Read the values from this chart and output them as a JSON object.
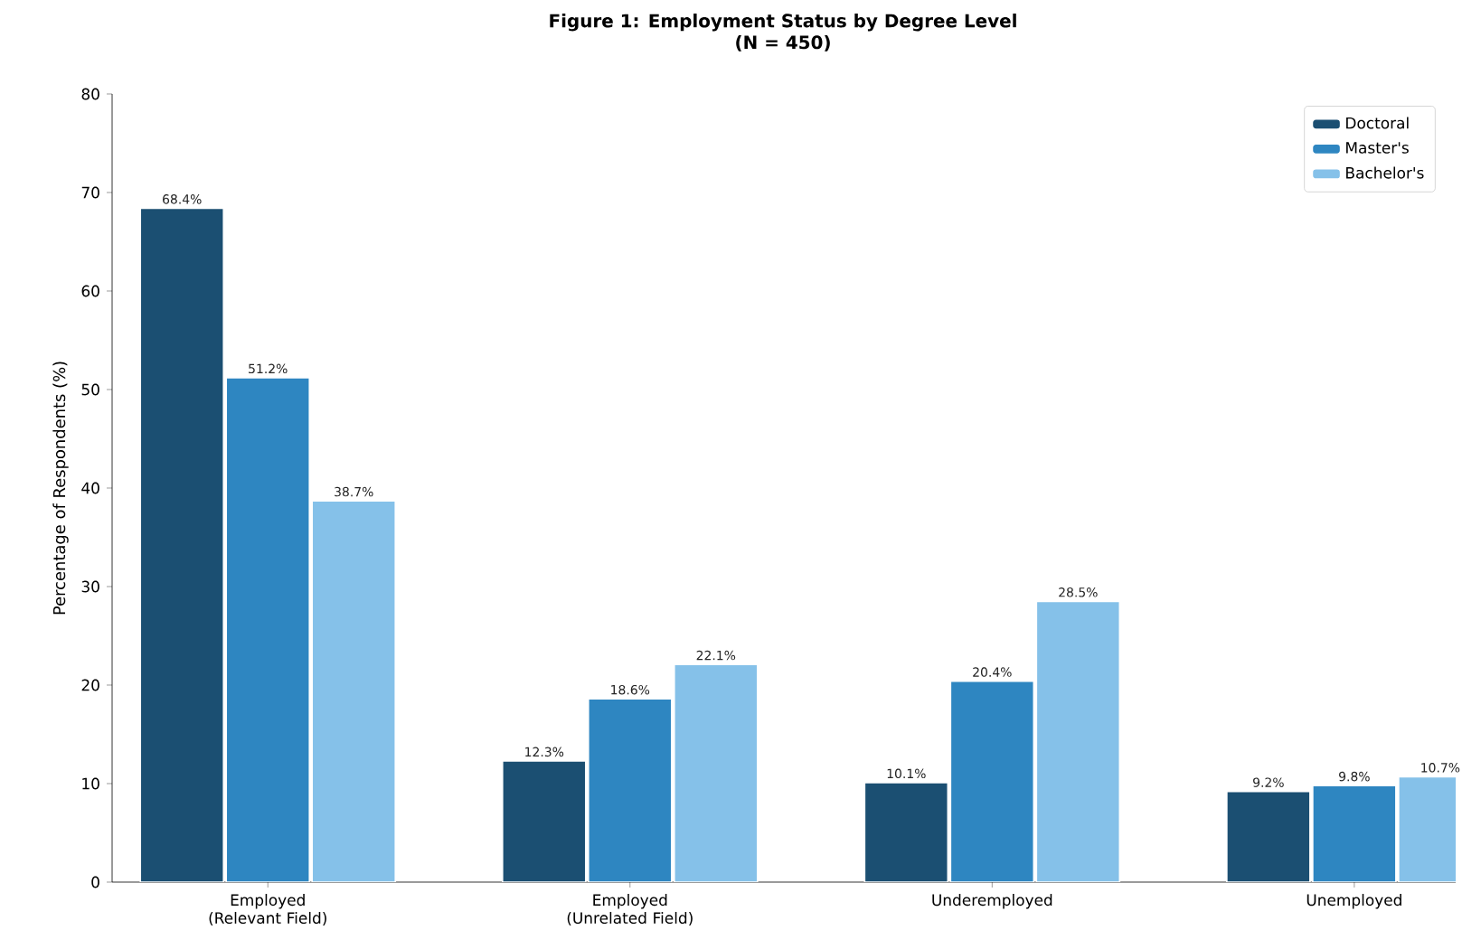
{
  "chart_data": {
    "type": "bar",
    "title": "Figure 1: Employment Status by Degree Level",
    "subtitle": "(N = 450)",
    "ylabel": "Percentage of Respondents (%)",
    "categories": [
      "Employed (Relevant Field)",
      "Employed (Unrelated Field)",
      "Underemployed",
      "Unemployed"
    ],
    "series": [
      {
        "name": "Doctoral",
        "color": "#1b4f72",
        "values": [
          68.4,
          12.3,
          10.1,
          9.2
        ],
        "value_labels": [
          "68.4%",
          "12.3%",
          "10.1%",
          "9.2%"
        ]
      },
      {
        "name": "Master's",
        "color": "#2e86c1",
        "values": [
          51.2,
          18.6,
          20.4,
          9.8
        ],
        "value_labels": [
          "51.2%",
          "18.6%",
          "20.4%",
          "9.8%"
        ]
      },
      {
        "name": "Bachelor's",
        "color": "#85c1e9",
        "values": [
          38.7,
          22.1,
          28.5,
          10.7
        ],
        "value_labels": [
          "38.7%",
          "22.1%",
          "28.5%",
          "10.7%"
        ]
      }
    ],
    "ylim": [
      0,
      80
    ],
    "yticks": [
      0,
      10,
      20,
      30,
      40,
      50,
      60,
      70,
      80
    ],
    "legend": "top right"
  }
}
